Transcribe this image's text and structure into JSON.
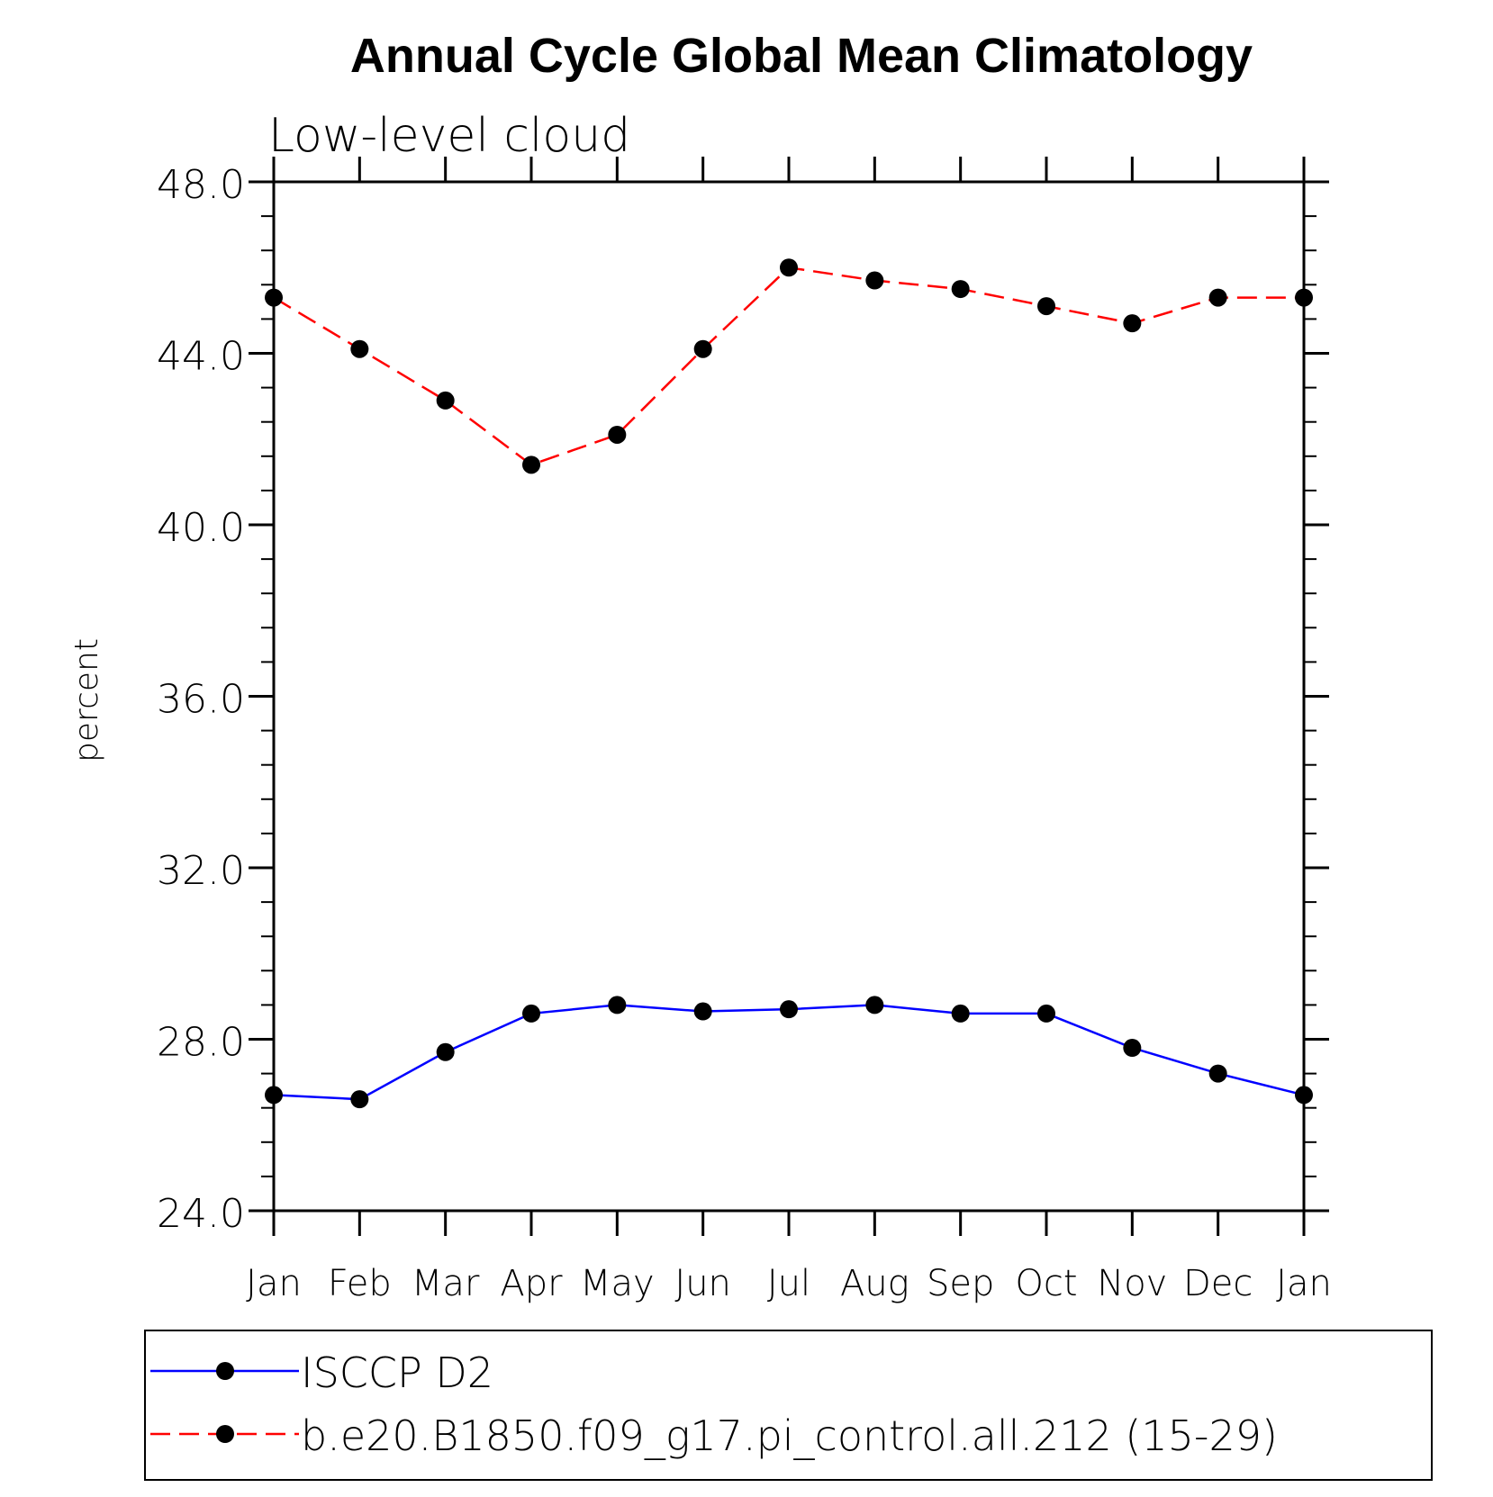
{
  "chart_data": {
    "type": "line",
    "title": "Annual Cycle Global Mean Climatology",
    "subtitle": "Low-level cloud",
    "xlabel": "",
    "ylabel": "percent",
    "ylim": [
      24,
      48
    ],
    "y_ticks": [
      "24.0",
      "28.0",
      "32.0",
      "36.0",
      "40.0",
      "44.0",
      "48.0"
    ],
    "categories": [
      "Jan",
      "Feb",
      "Mar",
      "Apr",
      "May",
      "Jun",
      "Jul",
      "Aug",
      "Sep",
      "Oct",
      "Nov",
      "Dec",
      "Jan"
    ],
    "grid": false,
    "legend_position": "bottom",
    "series": [
      {
        "name": "ISCCP D2",
        "color": "#0000ff",
        "line_style": "solid",
        "marker": "filled-circle",
        "values": [
          26.7,
          26.6,
          27.7,
          28.6,
          28.8,
          28.65,
          28.7,
          28.8,
          28.6,
          28.6,
          27.8,
          27.2,
          26.7
        ]
      },
      {
        "name": "b.e20.B1850.f09_g17.pi_control.all.212 (15-29)",
        "color": "#ff0000",
        "line_style": "dashed",
        "marker": "filled-circle",
        "values": [
          45.3,
          44.1,
          42.9,
          41.4,
          42.1,
          44.1,
          46.0,
          45.7,
          45.5,
          45.1,
          44.7,
          45.3,
          45.3
        ]
      }
    ]
  }
}
